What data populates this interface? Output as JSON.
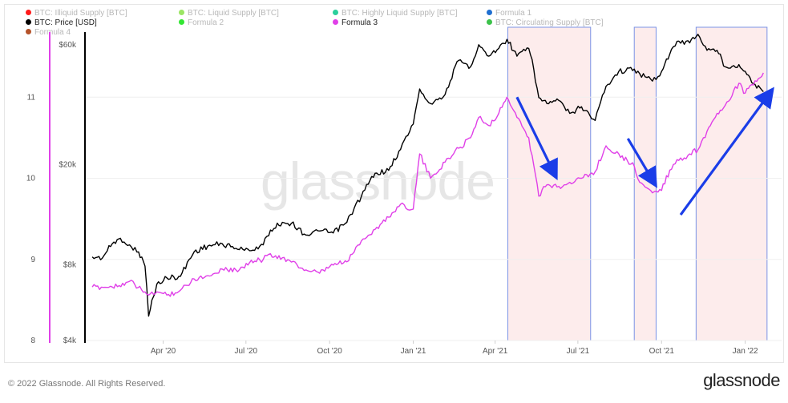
{
  "legend": [
    {
      "label": "BTC: Illiquid Supply [BTC]",
      "color": "#ff1a1a",
      "muted": true
    },
    {
      "label": "BTC: Liquid Supply [BTC]",
      "color": "#9be564",
      "muted": true
    },
    {
      "label": "BTC: Highly Liquid Supply [BTC]",
      "color": "#2bcf9c",
      "muted": true
    },
    {
      "label": "Formula 1",
      "color": "#1f6fd1",
      "muted": true
    },
    {
      "label": "BTC: Price [USD]",
      "color": "#000000",
      "muted": false
    },
    {
      "label": "Formula 2",
      "color": "#33e633",
      "muted": true
    },
    {
      "label": "Formula 3",
      "color": "#e040e8",
      "muted": false
    },
    {
      "label": "BTC: Circulating Supply [BTC]",
      "color": "#3cc24a",
      "muted": true
    },
    {
      "label": "Formula 4",
      "color": "#b5532a",
      "muted": true
    }
  ],
  "watermark": "glassnode",
  "footer": {
    "copyright": "© 2022 Glassnode. All Rights Reserved.",
    "brand": "glassnode"
  },
  "chart_data": {
    "type": "line",
    "x_ticks": [
      "Apr '20",
      "Jul '20",
      "Oct '20",
      "Jan '21",
      "Apr '21",
      "Jul '21",
      "Oct '21",
      "Jan '22"
    ],
    "y_left_ticks": [
      "8",
      "9",
      "10",
      "11"
    ],
    "y_left_range": [
      8,
      12
    ],
    "y_right_ticks": [
      "$4k",
      "$8k",
      "$20k",
      "$60k"
    ],
    "y_right_range_log": [
      4000,
      78000
    ],
    "grid": "horizontal",
    "series": [
      {
        "name": "BTC: Price [USD]",
        "axis": "right",
        "color": "#000000",
        "x": [
          "2020-01-14",
          "2020-01-25",
          "2020-02-05",
          "2020-02-14",
          "2020-02-24",
          "2020-03-05",
          "2020-03-12",
          "2020-03-16",
          "2020-03-25",
          "2020-04-05",
          "2020-04-20",
          "2020-05-05",
          "2020-05-20",
          "2020-06-05",
          "2020-06-20",
          "2020-07-05",
          "2020-07-20",
          "2020-07-28",
          "2020-08-10",
          "2020-08-20",
          "2020-09-05",
          "2020-09-20",
          "2020-10-05",
          "2020-10-20",
          "2020-11-05",
          "2020-11-20",
          "2020-12-05",
          "2020-12-18",
          "2021-01-01",
          "2021-01-08",
          "2021-01-20",
          "2021-02-05",
          "2021-02-20",
          "2021-03-05",
          "2021-03-14",
          "2021-03-25",
          "2021-04-05",
          "2021-04-14",
          "2021-04-25",
          "2021-05-08",
          "2021-05-19",
          "2021-05-28",
          "2021-06-10",
          "2021-06-22",
          "2021-07-05",
          "2021-07-20",
          "2021-08-01",
          "2021-08-15",
          "2021-09-01",
          "2021-09-07",
          "2021-09-21",
          "2021-10-01",
          "2021-10-10",
          "2021-10-20",
          "2021-11-01",
          "2021-11-10",
          "2021-11-20",
          "2021-12-01",
          "2021-12-10",
          "2021-12-25",
          "2022-01-01",
          "2022-01-10",
          "2022-01-21"
        ],
        "values": [
          8600,
          8500,
          9700,
          10200,
          9600,
          9000,
          7900,
          5000,
          6700,
          7100,
          7200,
          9000,
          9500,
          9700,
          9300,
          9100,
          9600,
          11000,
          11800,
          11700,
          10500,
          10900,
          10700,
          11800,
          15000,
          18500,
          19000,
          23000,
          29000,
          40000,
          35000,
          38000,
          52000,
          49000,
          60000,
          54000,
          58000,
          63000,
          54000,
          58000,
          37000,
          35000,
          36000,
          32000,
          34000,
          30000,
          41000,
          47000,
          48000,
          46000,
          43000,
          47000,
          55000,
          62000,
          61000,
          66000,
          57000,
          57000,
          49000,
          50000,
          47000,
          42000,
          39000
        ]
      },
      {
        "name": "Formula 3",
        "axis": "left",
        "color": "#e040e8",
        "x": [
          "2020-01-14",
          "2020-02-05",
          "2020-02-24",
          "2020-03-12",
          "2020-03-16",
          "2020-03-25",
          "2020-04-05",
          "2020-04-20",
          "2020-05-05",
          "2020-05-20",
          "2020-06-05",
          "2020-06-20",
          "2020-07-05",
          "2020-07-20",
          "2020-07-28",
          "2020-08-10",
          "2020-09-05",
          "2020-09-20",
          "2020-10-05",
          "2020-10-20",
          "2020-11-05",
          "2020-11-20",
          "2020-12-05",
          "2020-12-18",
          "2021-01-01",
          "2021-01-08",
          "2021-01-20",
          "2021-02-05",
          "2021-02-20",
          "2021-03-05",
          "2021-03-14",
          "2021-03-25",
          "2021-04-05",
          "2021-04-14",
          "2021-04-25",
          "2021-05-08",
          "2021-05-19",
          "2021-05-28",
          "2021-06-10",
          "2021-06-22",
          "2021-07-05",
          "2021-07-20",
          "2021-08-01",
          "2021-08-15",
          "2021-09-01",
          "2021-09-07",
          "2021-09-21",
          "2021-10-01",
          "2021-10-10",
          "2021-10-20",
          "2021-11-01",
          "2021-11-10",
          "2021-11-20",
          "2021-12-01",
          "2021-12-10",
          "2021-12-25",
          "2022-01-01",
          "2022-01-10",
          "2022-01-21"
        ],
        "values": [
          8.66,
          8.66,
          8.73,
          8.6,
          8.56,
          8.6,
          8.56,
          8.62,
          8.76,
          8.8,
          8.88,
          8.87,
          8.96,
          9.0,
          9.07,
          9.02,
          8.87,
          8.83,
          8.93,
          8.97,
          9.23,
          9.37,
          9.52,
          9.68,
          9.62,
          10.3,
          10.0,
          10.2,
          10.37,
          10.5,
          10.75,
          10.65,
          10.8,
          11.0,
          10.75,
          10.5,
          9.78,
          9.92,
          9.9,
          9.95,
          10.0,
          10.08,
          10.4,
          10.3,
          10.15,
          9.95,
          9.82,
          9.85,
          10.1,
          10.22,
          10.3,
          10.35,
          10.58,
          10.8,
          10.9,
          11.17,
          11.05,
          11.15,
          11.3
        ]
      }
    ],
    "highlight_ranges": [
      [
        "2021-04-15",
        "2021-07-15"
      ],
      [
        "2021-09-01",
        "2021-09-25"
      ],
      [
        "2021-11-08",
        "2022-01-25"
      ]
    ],
    "annotations": [
      {
        "type": "arrow",
        "from": [
          "2021-04-25",
          11.0
        ],
        "to": [
          "2021-06-05",
          10.06
        ]
      },
      {
        "type": "arrow",
        "from": [
          "2021-08-25",
          10.49
        ],
        "to": [
          "2021-09-22",
          9.96
        ]
      },
      {
        "type": "arrow",
        "from": [
          "2021-10-22",
          9.55
        ],
        "to": [
          "2022-01-28",
          11.05
        ]
      }
    ]
  }
}
